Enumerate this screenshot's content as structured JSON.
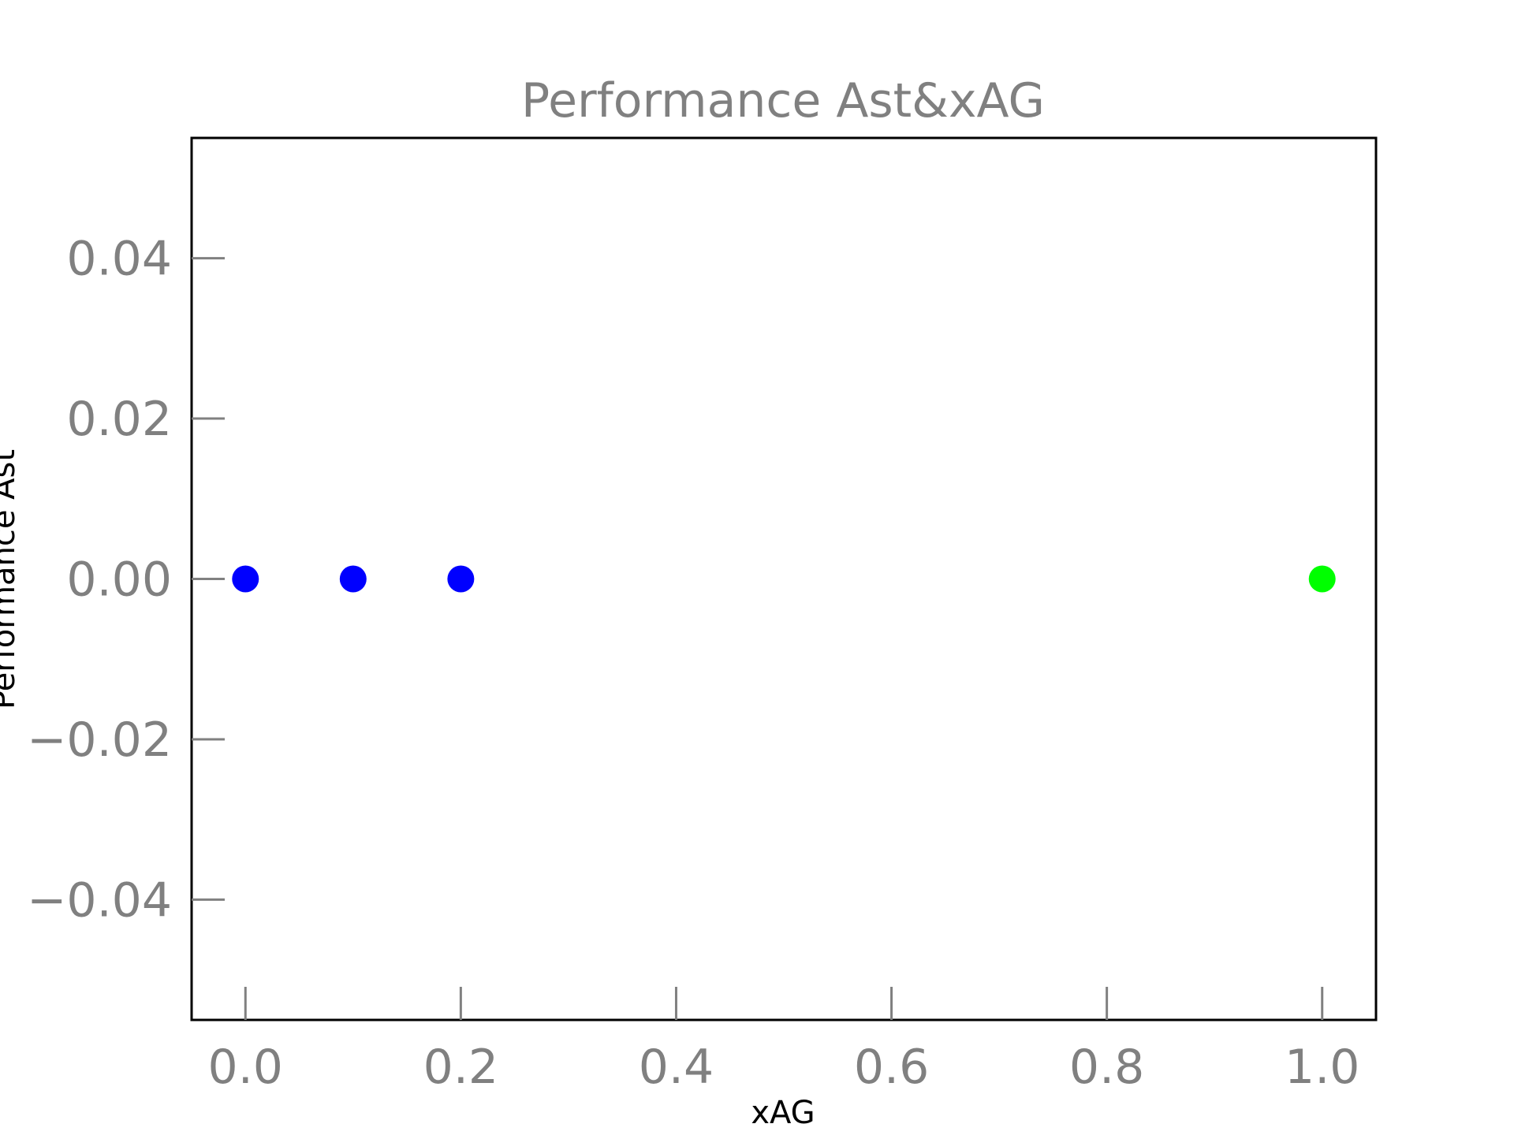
{
  "chart_data": {
    "type": "scatter",
    "title": "Performance Ast&xAG",
    "xlabel": "xAG",
    "ylabel": "Performance Ast",
    "xlim": [
      -0.05,
      1.05
    ],
    "ylim": [
      -0.055,
      0.055
    ],
    "xticks": [
      0.0,
      0.2,
      0.4,
      0.6,
      0.8,
      1.0
    ],
    "xtick_labels": [
      "0.0",
      "0.2",
      "0.4",
      "0.6",
      "0.8",
      "1.0"
    ],
    "yticks": [
      0.04,
      0.02,
      0.0,
      -0.02,
      -0.04
    ],
    "ytick_labels": [
      "0.04",
      "0.02",
      "0.00",
      "−0.02",
      "−0.04"
    ],
    "grid": false,
    "points": [
      {
        "x": 0.0,
        "y": 0.0,
        "color": "#0000ff"
      },
      {
        "x": 0.1,
        "y": 0.0,
        "color": "#0000ff"
      },
      {
        "x": 0.2,
        "y": 0.0,
        "color": "#0000ff"
      },
      {
        "x": 1.0,
        "y": 0.0,
        "color": "#00ff00"
      }
    ]
  }
}
